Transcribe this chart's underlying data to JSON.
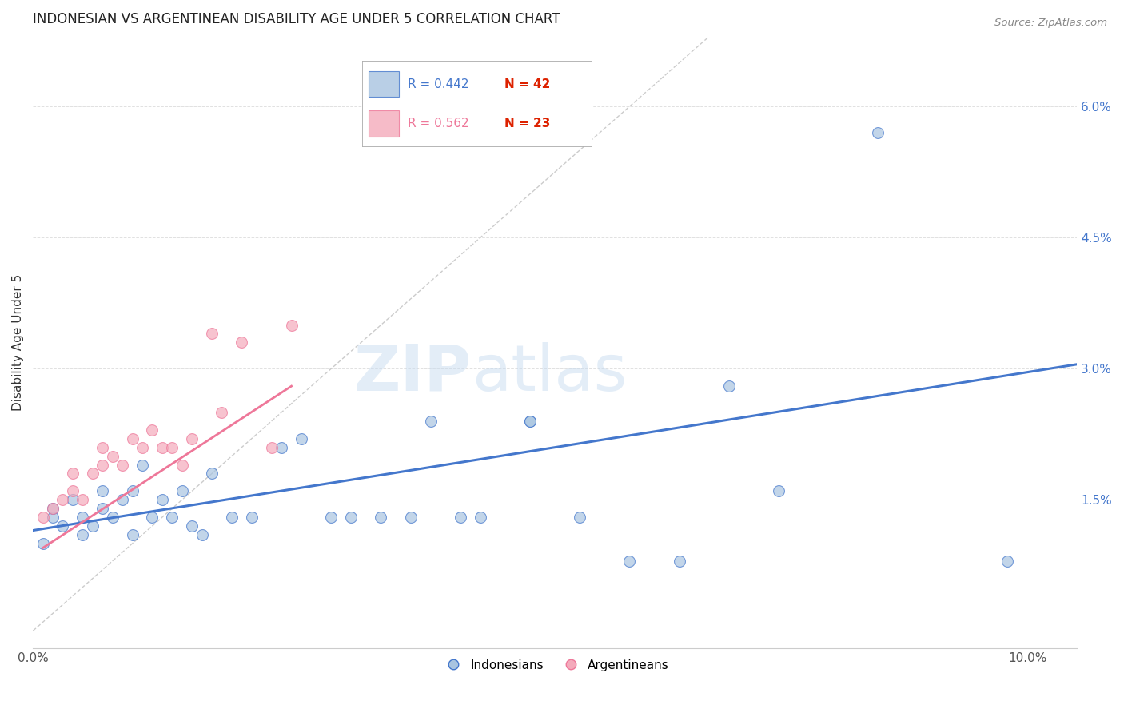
{
  "title": "INDONESIAN VS ARGENTINEAN DISABILITY AGE UNDER 5 CORRELATION CHART",
  "source": "Source: ZipAtlas.com",
  "ylabel": "Disability Age Under 5",
  "xlim": [
    0.0,
    0.105
  ],
  "ylim": [
    -0.002,
    0.068
  ],
  "yticks": [
    0.0,
    0.015,
    0.03,
    0.045,
    0.06
  ],
  "ytick_labels": [
    "",
    "1.5%",
    "3.0%",
    "4.5%",
    "6.0%"
  ],
  "xticks": [
    0.0,
    0.1
  ],
  "xtick_labels": [
    "0.0%",
    "10.0%"
  ],
  "legend_blue_r": "R = 0.442",
  "legend_blue_n": "N = 42",
  "legend_pink_r": "R = 0.562",
  "legend_pink_n": "N = 23",
  "blue_color": "#A8C4E0",
  "pink_color": "#F4AABB",
  "blue_line_color": "#4477CC",
  "pink_line_color": "#EE7799",
  "diag_line_color": "#CCCCCC",
  "watermark_zip": "ZIP",
  "watermark_atlas": "atlas",
  "indonesians_x": [
    0.001,
    0.002,
    0.002,
    0.003,
    0.004,
    0.005,
    0.005,
    0.006,
    0.007,
    0.007,
    0.008,
    0.009,
    0.01,
    0.01,
    0.011,
    0.012,
    0.013,
    0.014,
    0.015,
    0.016,
    0.017,
    0.018,
    0.02,
    0.022,
    0.025,
    0.027,
    0.03,
    0.032,
    0.035,
    0.038,
    0.04,
    0.043,
    0.045,
    0.05,
    0.05,
    0.055,
    0.06,
    0.065,
    0.07,
    0.075,
    0.085,
    0.098
  ],
  "indonesians_y": [
    0.01,
    0.013,
    0.014,
    0.012,
    0.015,
    0.013,
    0.011,
    0.012,
    0.014,
    0.016,
    0.013,
    0.015,
    0.011,
    0.016,
    0.019,
    0.013,
    0.015,
    0.013,
    0.016,
    0.012,
    0.011,
    0.018,
    0.013,
    0.013,
    0.021,
    0.022,
    0.013,
    0.013,
    0.013,
    0.013,
    0.024,
    0.013,
    0.013,
    0.024,
    0.024,
    0.013,
    0.008,
    0.008,
    0.028,
    0.016,
    0.057,
    0.008
  ],
  "argentineans_x": [
    0.001,
    0.002,
    0.003,
    0.004,
    0.004,
    0.005,
    0.006,
    0.007,
    0.007,
    0.008,
    0.009,
    0.01,
    0.011,
    0.012,
    0.013,
    0.014,
    0.015,
    0.016,
    0.018,
    0.019,
    0.021,
    0.024,
    0.026
  ],
  "argentineans_y": [
    0.013,
    0.014,
    0.015,
    0.016,
    0.018,
    0.015,
    0.018,
    0.021,
    0.019,
    0.02,
    0.019,
    0.022,
    0.021,
    0.023,
    0.021,
    0.021,
    0.019,
    0.022,
    0.034,
    0.025,
    0.033,
    0.021,
    0.035
  ],
  "blue_line_x": [
    0.0,
    0.105
  ],
  "blue_line_y": [
    0.0115,
    0.0305
  ],
  "pink_line_x": [
    0.001,
    0.026
  ],
  "pink_line_y": [
    0.0095,
    0.028
  ],
  "diag_line_x": [
    0.0,
    0.068
  ],
  "diag_line_y": [
    0.0,
    0.068
  ]
}
